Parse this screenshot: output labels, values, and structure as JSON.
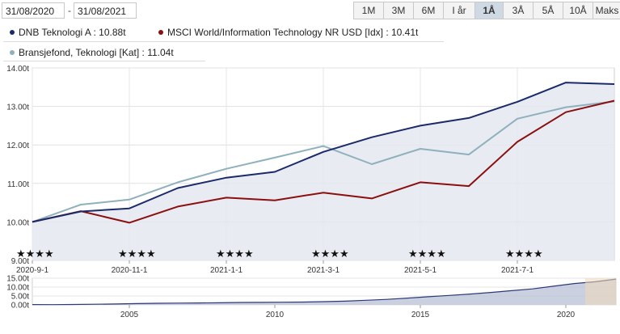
{
  "date_range": {
    "from": "31/08/2020",
    "separator": "-",
    "to": "31/08/2021"
  },
  "range_buttons": [
    {
      "label": "1M",
      "active": false
    },
    {
      "label": "3M",
      "active": false
    },
    {
      "label": "6M",
      "active": false
    },
    {
      "label": "I år",
      "active": false
    },
    {
      "label": "1Å",
      "active": true
    },
    {
      "label": "3Å",
      "active": false
    },
    {
      "label": "5Å",
      "active": false
    },
    {
      "label": "10Å",
      "active": false
    },
    {
      "label": "Maks",
      "active": false
    }
  ],
  "legend": [
    {
      "text": "DNB Teknologi A : 10.88t",
      "color": "#1b2a6b"
    },
    {
      "text": "MSCI World/Information Technology NR USD [Idx] : 10.41t",
      "color": "#8b0f0f"
    },
    {
      "text": "Bransjefond, Teknologi [Kat] : 11.04t",
      "color": "#8fb0bd"
    }
  ],
  "chart_data": {
    "type": "line",
    "y_tick_labels": [
      "9.00t",
      "10.00t",
      "11.00t",
      "12.00t",
      "13.00t",
      "14.00t"
    ],
    "x_tick_labels": [
      "2020-9-1",
      "2020-11-1",
      "2021-1-1",
      "2021-3-1",
      "2021-5-1",
      "2021-7-1"
    ],
    "ylim": [
      9.0,
      14.0
    ],
    "grid": true,
    "rating_marks": [
      "★★★★",
      "★★★★",
      "★★★★",
      "★★★★",
      "★★★★",
      "★★★★"
    ],
    "series": [
      {
        "name": "DNB Teknologi A",
        "color": "#1b2a6b",
        "values": [
          10.0,
          10.27,
          10.35,
          10.88,
          11.15,
          11.3,
          11.82,
          12.2,
          12.5,
          12.7,
          13.12,
          13.62,
          13.58
        ]
      },
      {
        "name": "MSCI World/Information Technology NR USD [Idx]",
        "color": "#8b0f0f",
        "values": [
          10.0,
          10.28,
          9.98,
          10.4,
          10.63,
          10.56,
          10.76,
          10.61,
          11.03,
          10.93,
          12.08,
          12.85,
          13.15
        ]
      },
      {
        "name": "Bransjefond, Teknologi [Kat]",
        "color": "#8fb0bd",
        "values": [
          10.0,
          10.45,
          10.58,
          11.03,
          11.38,
          11.67,
          11.97,
          11.5,
          11.9,
          11.75,
          12.68,
          12.98,
          13.13
        ]
      }
    ]
  },
  "navigator": {
    "y_tick_labels": [
      "15.00t",
      "10.00t",
      "5.00t",
      "0.00t"
    ],
    "x_tick_labels": [
      "2005",
      "2010",
      "2015",
      "2020"
    ],
    "values": [
      0.2,
      0.15,
      0.25,
      0.35,
      0.5,
      0.75,
      0.9,
      1.0,
      1.1,
      1.2,
      1.35,
      1.4,
      1.5,
      1.6,
      1.8,
      2.1,
      2.6,
      3.1,
      3.8,
      4.6,
      5.3,
      6.1,
      7.0,
      8.0,
      9.0,
      10.5,
      12.0,
      13.0,
      14.5
    ]
  }
}
